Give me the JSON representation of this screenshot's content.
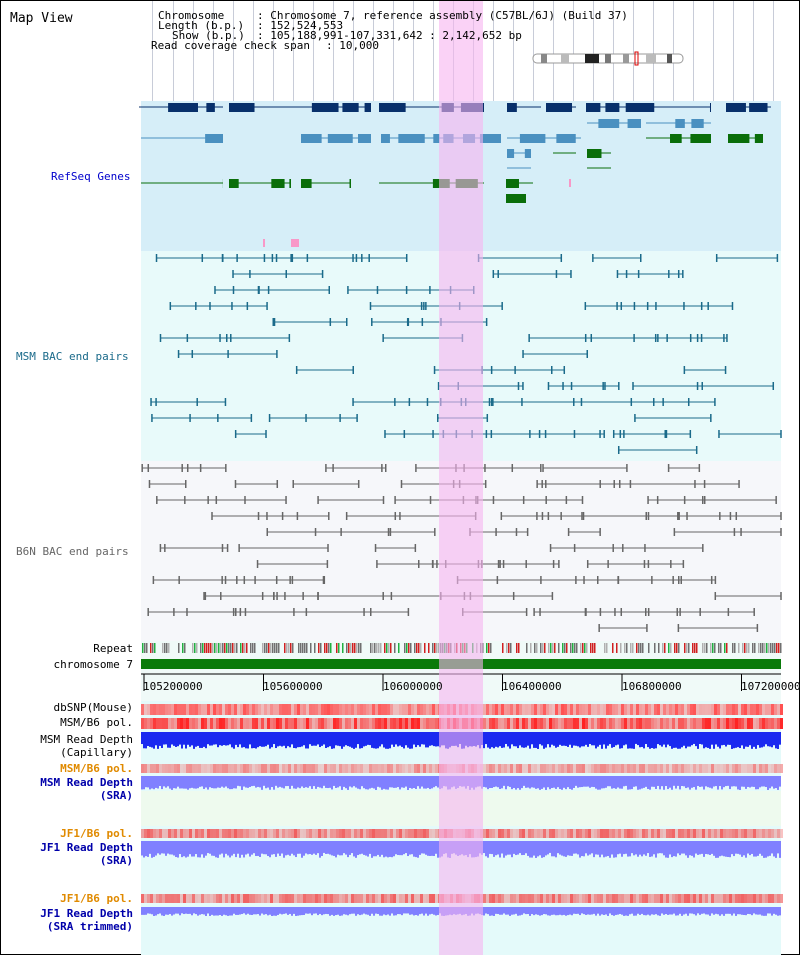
{
  "header": {
    "title": "Map View",
    "chromosome_label": "Chromosome",
    "chromosome_value": ": Chromosome 7, reference assembly (C57BL/6J) (Build 37)",
    "length_label": "Length (b.p.)",
    "length_value": ": 152,524,553",
    "show_label": "Show (b.p.)",
    "show_value": ": 105,188,991-107,331,642 : 2,142,652 bp",
    "coverage_label": "Read coverage check span",
    "coverage_value": ": 10,000"
  },
  "tracks": {
    "refseq": "RefSeq Genes",
    "msm_bac": "MSM BAC end pairs",
    "b6n_bac": "B6N BAC end pairs",
    "repeat": "Repeat",
    "chromosome": "chromosome 7",
    "dbsnp": "dbSNP(Mouse)",
    "msm_b6_pol": "MSM/B6 pol.",
    "msm_read_depth_cap_1": "MSM Read Depth",
    "msm_read_depth_cap_2": "(Capillary)",
    "msm_b6_pol2": "MSM/B6 pol.",
    "msm_read_depth_sra_1": "MSM Read Depth",
    "msm_read_depth_sra_2": "(SRA)",
    "jf1_b6_pol": "JF1/B6 pol.",
    "jf1_read_depth_sra_1": "JF1 Read Depth",
    "jf1_read_depth_sra_2": "(SRA)",
    "jf1_b6_pol2": "JF1/B6 pol.",
    "jf1_read_depth_trim_1": "JF1 Read Depth",
    "jf1_read_depth_trim_2": "(SRA trimmed)"
  },
  "axis": {
    "ticks": [
      "105200000",
      "105600000",
      "106000000",
      "106400000",
      "106800000",
      "107200000"
    ]
  },
  "colors": {
    "refseq_bg": "#d6eef8",
    "msm_bg": "#e8fafa",
    "b6n_bg": "#f6f7fa",
    "highlight": "#f7b4f0",
    "gene_dark": "#08306b",
    "gene_mid": "#4a90c0",
    "gene_green": "#0a6e0a",
    "bac_msm": "#1a6a8a",
    "bac_b6n": "#666666",
    "chrom_bar": "#0a7a0a",
    "snp": "#f07070",
    "depth_blue": "#1a2af0",
    "depth_light": "#8080ff"
  }
}
